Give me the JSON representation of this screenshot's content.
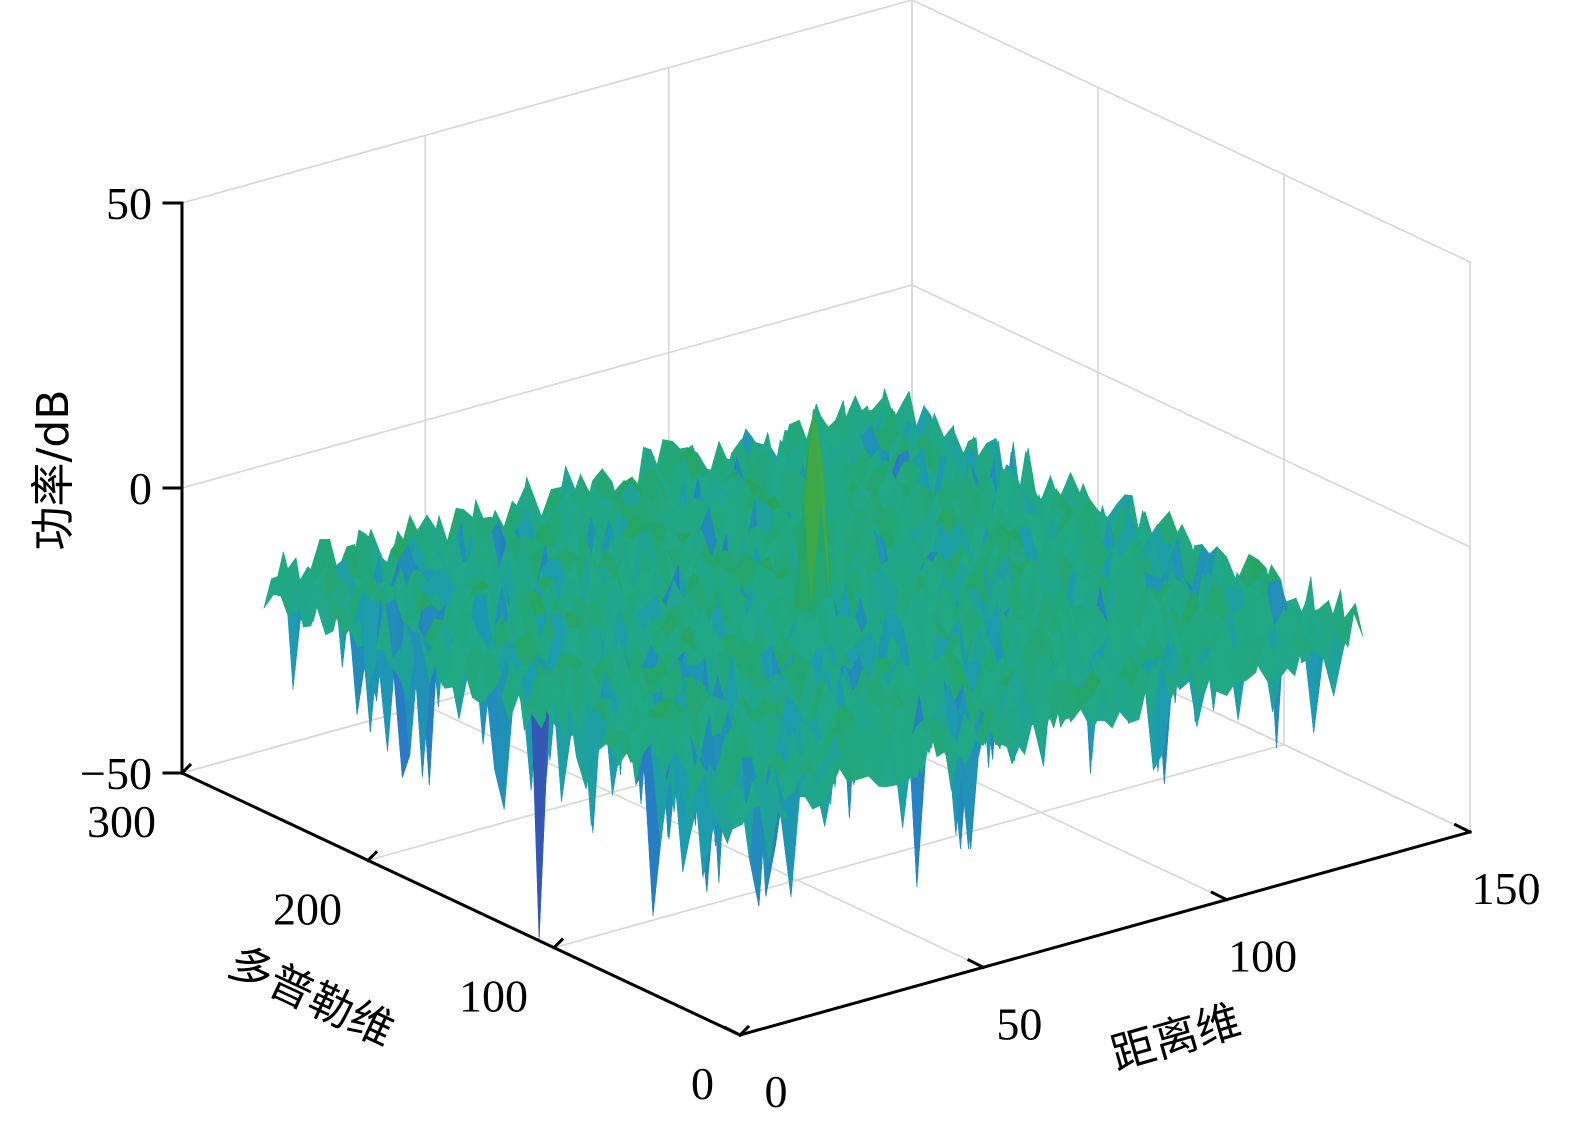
{
  "chart_data": {
    "type": "surface3d",
    "title": "",
    "xlabel": "距离维",
    "ylabel": "多普勒维",
    "zlabel": "功率/dB",
    "x_range": [
      0,
      150
    ],
    "y_range": [
      0,
      300
    ],
    "z_range": [
      -50,
      50
    ],
    "x_ticks": [
      0,
      50,
      100,
      150
    ],
    "y_ticks": [
      0,
      100,
      200,
      300
    ],
    "z_ticks": [
      -50,
      0,
      50
    ],
    "x_tick_labels": [
      "0",
      "50",
      "100",
      "150"
    ],
    "y_tick_labels": [
      "0",
      "100",
      "200",
      "300"
    ],
    "z_tick_labels": [
      "−50",
      "0",
      "50"
    ],
    "surface_x_range": [
      0,
      128
    ],
    "surface_y_range": [
      0,
      256
    ],
    "noise_floor_db": -10,
    "noise_span_db": 12,
    "min_dip_db": -50,
    "peak": {
      "x": 64,
      "y": 128,
      "z": 25
    },
    "grid": true,
    "colormap": [
      "#3b3fa3",
      "#2b73c8",
      "#1d9cb0",
      "#21a885",
      "#2aa34a",
      "#7fb832",
      "#e0a72b",
      "#f5d21e"
    ]
  }
}
